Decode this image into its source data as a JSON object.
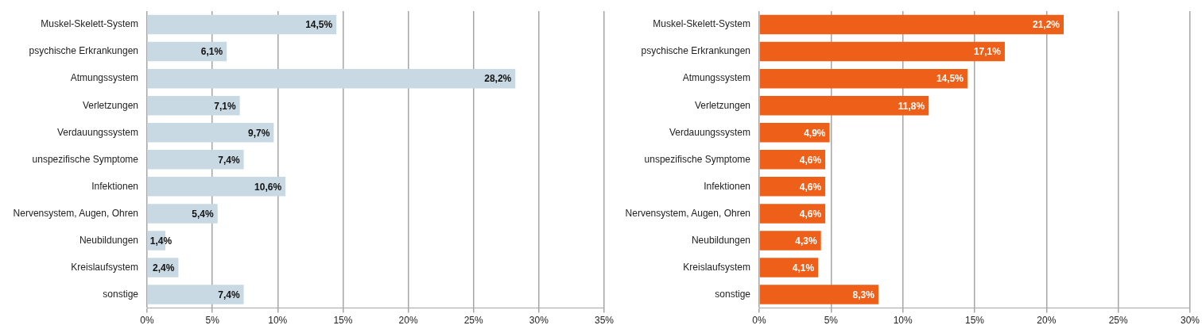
{
  "chart_data": [
    {
      "type": "bar",
      "orientation": "horizontal",
      "categories": [
        "Muskel-Skelett-System",
        "psychische Erkrankungen",
        "Atmungssystem",
        "Verletzungen",
        "Verdauungssystem",
        "unspezifische Symptome",
        "Infektionen",
        "Nervensystem, Augen, Ohren",
        "Neubildungen",
        "Kreislaufsystem",
        "sonstige"
      ],
      "values": [
        14.5,
        6.1,
        28.2,
        7.1,
        9.7,
        7.4,
        10.6,
        5.4,
        1.4,
        2.4,
        7.4
      ],
      "value_labels": [
        "14,5%",
        "6,1%",
        "28,2%",
        "7,1%",
        "9,7%",
        "7,4%",
        "10,6%",
        "5,4%",
        "1,4%",
        "2,4%",
        "7,4%"
      ],
      "color": "#c8d9e3",
      "xlim": [
        0,
        35
      ],
      "xticks": [
        {
          "value": 0,
          "label": "0%"
        },
        {
          "value": 5,
          "label": "5%"
        },
        {
          "value": 10,
          "label": "10%"
        },
        {
          "value": 15,
          "label": "15%"
        },
        {
          "value": 20,
          "label": "20%"
        },
        {
          "value": 25,
          "label": "25%"
        },
        {
          "value": 30,
          "label": "30%"
        },
        {
          "value": 35,
          "label": "35%"
        }
      ],
      "grid": "x"
    },
    {
      "type": "bar",
      "orientation": "horizontal",
      "categories": [
        "Muskel-Skelett-System",
        "psychische Erkrankungen",
        "Atmungssystem",
        "Verletzungen",
        "Verdauungssystem",
        "unspezifische Symptome",
        "Infektionen",
        "Nervensystem, Augen, Ohren",
        "Neubildungen",
        "Kreislaufsystem",
        "sonstige"
      ],
      "values": [
        21.2,
        17.1,
        14.5,
        11.8,
        4.9,
        4.6,
        4.6,
        4.6,
        4.3,
        4.1,
        8.3
      ],
      "value_labels": [
        "21,2%",
        "17,1%",
        "14,5%",
        "11,8%",
        "4,9%",
        "4,6%",
        "4,6%",
        "4,6%",
        "4,3%",
        "4,1%",
        "8,3%"
      ],
      "color": "#ee5f19",
      "xlim": [
        0,
        30
      ],
      "xticks": [
        {
          "value": 0,
          "label": "0%"
        },
        {
          "value": 5,
          "label": "5%"
        },
        {
          "value": 10,
          "label": "10%"
        },
        {
          "value": 15,
          "label": "15%"
        },
        {
          "value": 20,
          "label": "20%"
        },
        {
          "value": 25,
          "label": "25%"
        },
        {
          "value": 30,
          "label": "30%"
        }
      ],
      "grid": "x"
    }
  ]
}
